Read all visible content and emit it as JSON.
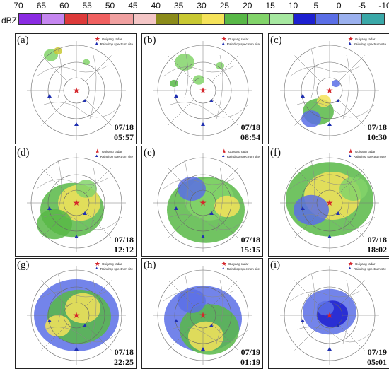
{
  "colorbar": {
    "unit": "dBZ",
    "ticks": [
      "70",
      "65",
      "60",
      "55",
      "50",
      "45",
      "40",
      "35",
      "30",
      "25",
      "20",
      "15",
      "10",
      "5",
      "0",
      "-5",
      "-10"
    ],
    "colors": [
      "#8a2be2",
      "#c586f0",
      "#dd3a3a",
      "#f06060",
      "#f0a0a0",
      "#f4c6c6",
      "#8b8b1a",
      "#c8c832",
      "#f5e35a",
      "#58b847",
      "#82d46a",
      "#a6e8a0",
      "#1d20d0",
      "#5a6ee6",
      "#9ab0ee",
      "#3aa8a8"
    ]
  },
  "legend": {
    "radar": "Guiyang radar",
    "site": "Raindrop spectrum site"
  },
  "ring_label": "150km",
  "panels": [
    {
      "label": "(a)",
      "date": "07/18",
      "time": "05:57"
    },
    {
      "label": "(b)",
      "date": "07/18",
      "time": "08:54"
    },
    {
      "label": "(c)",
      "date": "07/18",
      "time": "10:30"
    },
    {
      "label": "(d)",
      "date": "07/18",
      "time": "12:12"
    },
    {
      "label": "(e)",
      "date": "07/18",
      "time": "15:15"
    },
    {
      "label": "(f)",
      "date": "07/18",
      "time": "18:02"
    },
    {
      "label": "(g)",
      "date": "07/18",
      "time": "22:25"
    },
    {
      "label": "(h)",
      "date": "07/19",
      "time": "01:19"
    },
    {
      "label": "(i)",
      "date": "07/19",
      "time": "05:01"
    }
  ]
}
